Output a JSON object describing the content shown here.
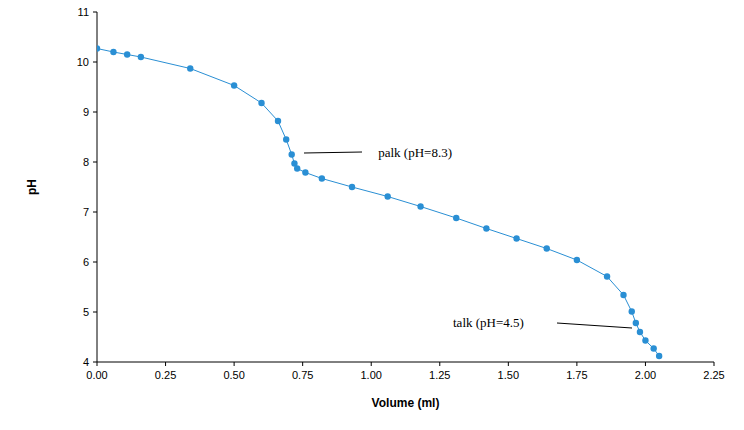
{
  "chart_data": {
    "type": "line",
    "x_label": "Volume (ml)",
    "y_label": "pH",
    "x": [
      0,
      0.06,
      0.11,
      0.16,
      0.34,
      0.5,
      0.6,
      0.66,
      0.69,
      0.71,
      0.72,
      0.73,
      0.76,
      0.82,
      0.93,
      1.06,
      1.18,
      1.31,
      1.42,
      1.53,
      1.64,
      1.75,
      1.86,
      1.92,
      1.95,
      1.965,
      1.98,
      2.0,
      2.03,
      2.05
    ],
    "values": [
      10.27,
      10.2,
      10.15,
      10.1,
      9.87,
      9.53,
      9.18,
      8.82,
      8.45,
      8.15,
      7.97,
      7.87,
      7.79,
      7.67,
      7.5,
      7.31,
      7.11,
      6.88,
      6.67,
      6.47,
      6.27,
      6.04,
      5.71,
      5.34,
      5.01,
      4.78,
      4.6,
      4.43,
      4.27,
      4.12
    ],
    "color": "#2a8fd4",
    "marker": "circle",
    "line_style": "solid",
    "xlim": [
      0,
      2.25
    ],
    "ylim": [
      4,
      11
    ],
    "xticks": [
      {
        "value": 0,
        "label": "0.00"
      },
      {
        "value": 0.25,
        "label": "0.25"
      },
      {
        "value": 0.5,
        "label": "0.50"
      },
      {
        "value": 0.75,
        "label": "0.75"
      },
      {
        "value": 1,
        "label": "1.00"
      },
      {
        "value": 1.25,
        "label": "1.25"
      },
      {
        "value": 1.5,
        "label": "1.50"
      },
      {
        "value": 1.75,
        "label": "1.75"
      },
      {
        "value": 2,
        "label": "2.00"
      },
      {
        "value": 2.25,
        "label": "2.25"
      }
    ],
    "yticks": [
      4,
      5,
      6,
      7,
      8,
      9,
      10,
      11
    ],
    "grid": false,
    "annotations": [
      {
        "text": "palk (pH=8.3)"
      },
      {
        "text": "talk (pH=4.5)"
      }
    ]
  }
}
